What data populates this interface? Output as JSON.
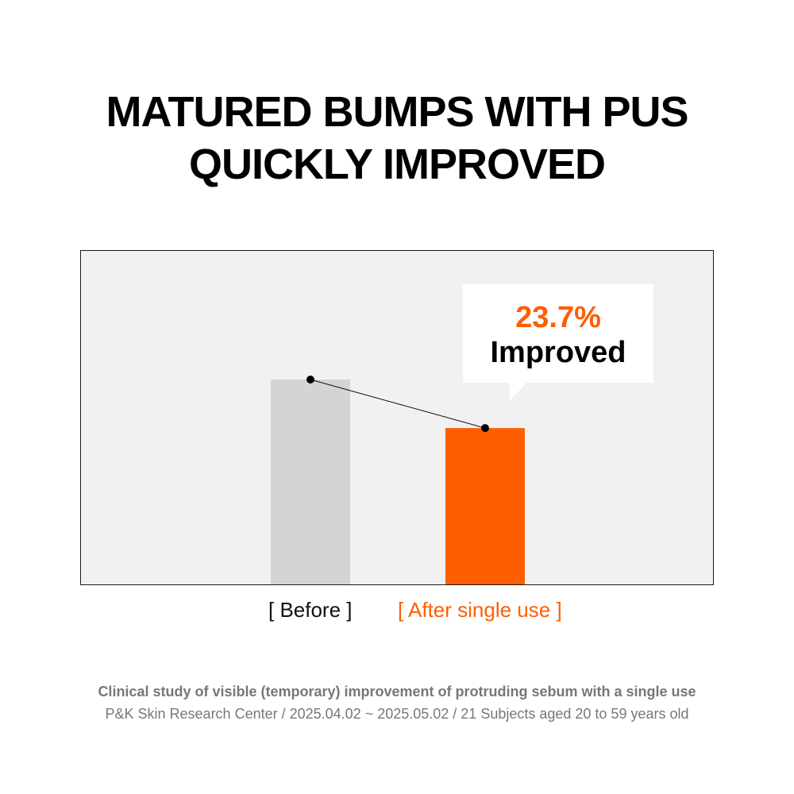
{
  "title": {
    "line1": "MATURED BUMPS WITH PUS",
    "line2": "QUICKLY IMPROVED"
  },
  "chart_data": {
    "type": "bar",
    "categories": [
      "[ Before ]",
      "[ After single use ]"
    ],
    "values": [
      100,
      76.3
    ],
    "ylim": [
      0,
      100
    ],
    "colors": [
      "#d4d4d4",
      "#ff5e00"
    ],
    "grid": false,
    "annotation": {
      "value": "23.7%",
      "text": "Improved"
    }
  },
  "footnote": {
    "line1": "Clinical study of visible (temporary) improvement of protruding sebum with a single use",
    "line2": "P&K Skin Research Center / 2025.04.02 ~ 2025.05.02 / 21 Subjects aged 20 to 59 years old"
  }
}
